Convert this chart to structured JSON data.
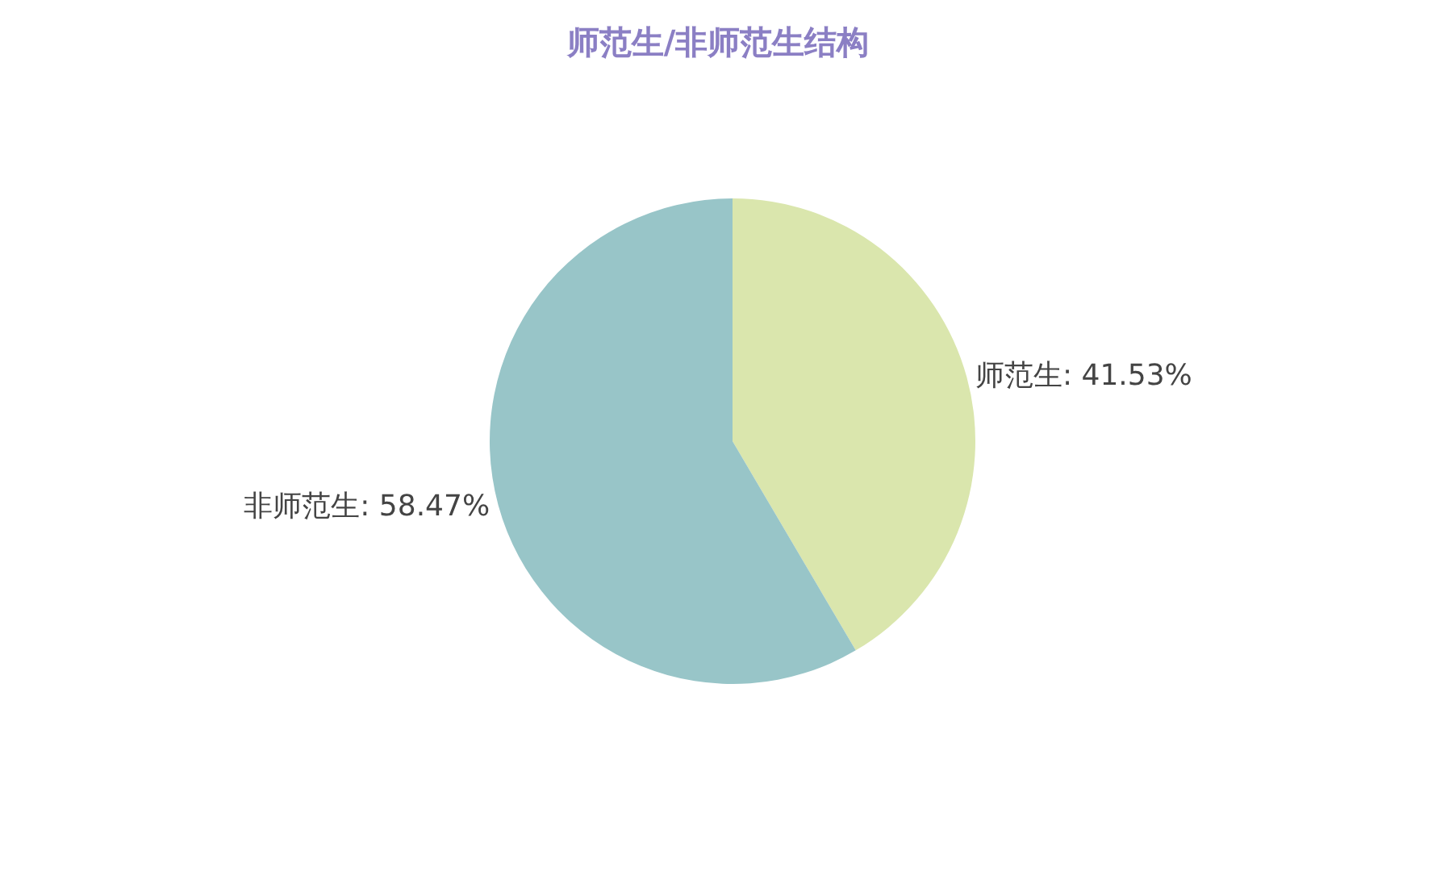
{
  "chart_data": {
    "type": "pie",
    "title": "师范生/非师范生结构",
    "categories": [
      "师范生",
      "非师范生"
    ],
    "values": [
      41.53,
      58.47
    ],
    "colors": [
      "#dae6ad",
      "#98c5c8"
    ],
    "value_labels": [
      "41.53%",
      "58.47%"
    ],
    "legend": false
  }
}
